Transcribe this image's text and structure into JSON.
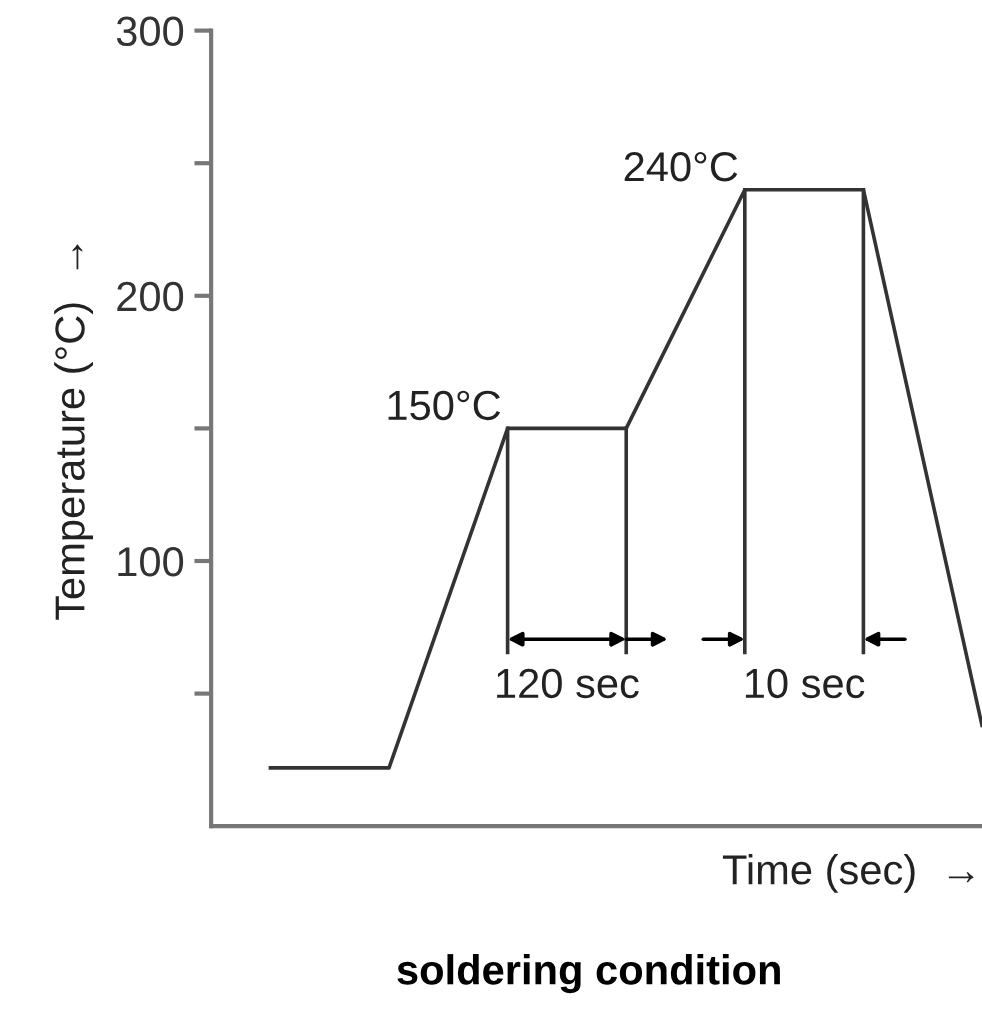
{
  "chart_data": {
    "type": "line",
    "title": "soldering condition",
    "xlabel": "Time (sec)  →",
    "ylabel": "Temperature (°C)  →",
    "categories": [
      null,
      null,
      null,
      null,
      null,
      null,
      null
    ],
    "series": [
      {
        "color": "#333333",
        "values": [
          22,
          22,
          150,
          150,
          240,
          240,
          38
        ]
      }
    ],
    "ylim": [
      0,
      300
    ],
    "yticks": [
      {
        "value": 50,
        "label": null
      },
      100,
      {
        "value": 150,
        "label": null
      },
      200,
      {
        "value": 250,
        "label": null
      },
      300
    ],
    "tick_labels": "y",
    "annotations": [
      "150°C",
      "240°C",
      "120 sec",
      "10 sec"
    ],
    "grid": false,
    "marker": "none",
    "line_style": "solid"
  }
}
